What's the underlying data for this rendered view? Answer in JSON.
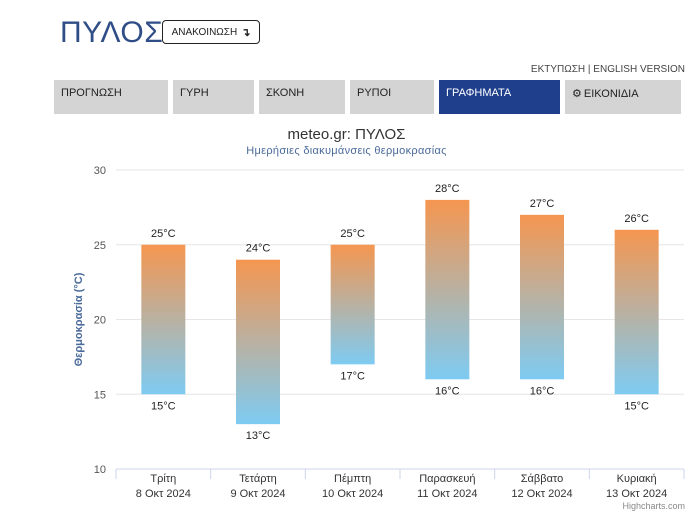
{
  "header": {
    "city": "ΠΥΛΟΣ",
    "announce_label": "ΑΝΑΚΟΙΝΩΣΗ",
    "announce_arrow": "↴",
    "print_link": "ΕΚΤΥΠΩΣΗ",
    "separator": "|",
    "english_link": "ENGLISH VERSION"
  },
  "nav": {
    "tabs": [
      {
        "label": "ΠΡΟΓΝΩΣΗ"
      },
      {
        "label": "ΓΥΡΗ"
      },
      {
        "label": "ΣΚΟΝΗ"
      },
      {
        "label": "ΡΥΠΟΙ"
      },
      {
        "label": "ΓΡΑΦΗΜΑΤΑ",
        "active": true
      },
      {
        "label": "ΕΙΚΟΝΙΔΙΑ",
        "icon": "gear-icon"
      }
    ]
  },
  "chart_data": {
    "type": "bar",
    "title": "meteo.gr: ΠΥΛΟΣ",
    "subtitle": "Ημερήσιες διακυμάνσεις θερμοκρασίας",
    "ylabel": "Θερμοκρασία (°C)",
    "ylim": [
      10,
      30
    ],
    "yticks": [
      10,
      15,
      20,
      25,
      30
    ],
    "grid": true,
    "unit_suffix": "°C",
    "categories": [
      {
        "day": "Τρίτη",
        "date": "8 Οκτ 2024"
      },
      {
        "day": "Τετάρτη",
        "date": "9 Οκτ 2024"
      },
      {
        "day": "Πέμπτη",
        "date": "10 Οκτ 2024"
      },
      {
        "day": "Παρασκευή",
        "date": "11 Οκτ 2024"
      },
      {
        "day": "Σάββατο",
        "date": "12 Οκτ 2024"
      },
      {
        "day": "Κυριακή",
        "date": "13 Οκτ 2024"
      }
    ],
    "series": [
      {
        "values": [
          [
            15,
            25
          ],
          [
            13,
            24
          ],
          [
            17,
            25
          ],
          [
            16,
            28
          ],
          [
            16,
            27
          ],
          [
            15,
            26
          ]
        ]
      }
    ],
    "colors": {
      "high": "#f59650",
      "low": "#7ecbf2",
      "grid": "#e6e6e6",
      "axis_label": "#4a6a9a"
    }
  },
  "footer": {
    "credit": "Highcharts.com"
  }
}
